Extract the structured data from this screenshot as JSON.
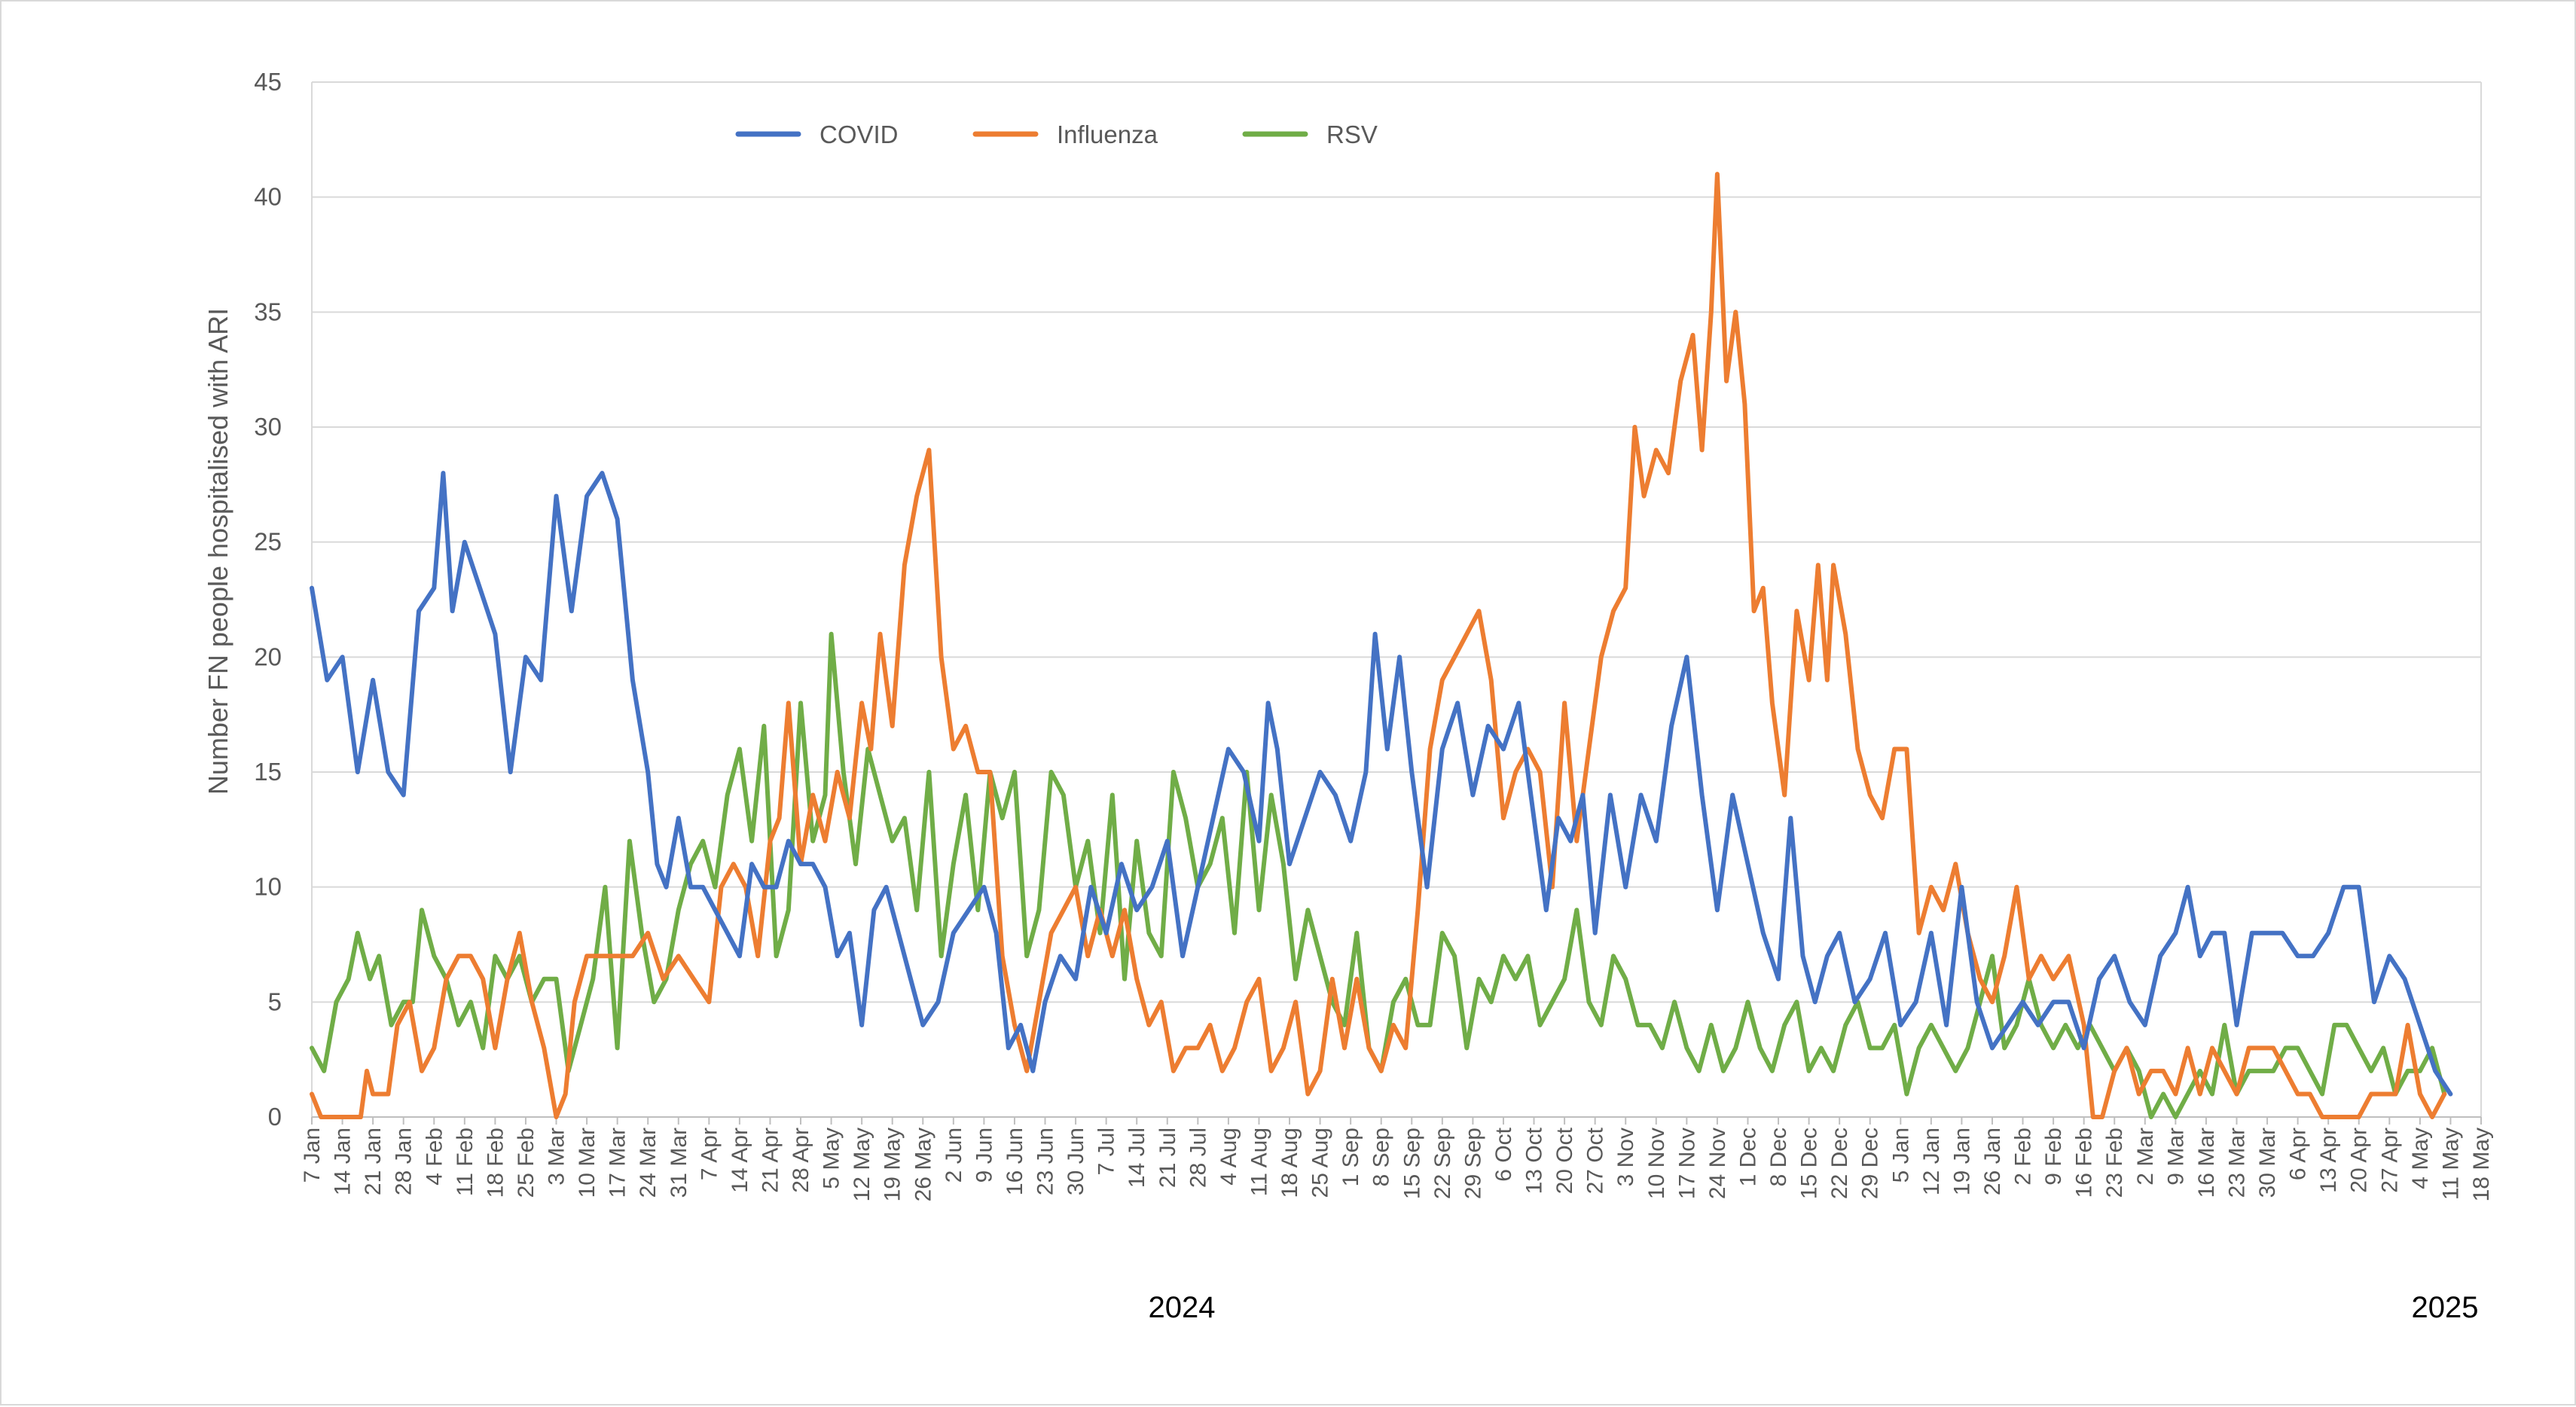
{
  "chart_data": {
    "type": "line",
    "title": "",
    "ylabel": "Number FN people hospitalised with ARI",
    "xlabel": "",
    "ylim": [
      0,
      45
    ],
    "y_ticks": [
      0,
      5,
      10,
      15,
      20,
      25,
      30,
      35,
      40,
      45
    ],
    "grid": "horizontal",
    "legend_position": "top-left",
    "x_tick_labels": [
      "7 Jan",
      "14 Jan",
      "21 Jan",
      "28 Jan",
      "4 Feb",
      "11 Feb",
      "18 Feb",
      "25 Feb",
      "3 Mar",
      "10 Mar",
      "17 Mar",
      "24 Mar",
      "31 Mar",
      "7 Apr",
      "14 Apr",
      "21 Apr",
      "28 Apr",
      "5 May",
      "12 May",
      "19 May",
      "26 May",
      "2 Jun",
      "9 Jun",
      "16 Jun",
      "23 Jun",
      "30 Jun",
      "7 Jul",
      "14 Jul",
      "21 Jul",
      "28 Jul",
      "4 Aug",
      "11 Aug",
      "18 Aug",
      "25 Aug",
      "1 Sep",
      "8 Sep",
      "15 Sep",
      "22 Sep",
      "29 Sep",
      "6 Oct",
      "13 Oct",
      "20 Oct",
      "27 Oct",
      "3 Nov",
      "10 Nov",
      "17 Nov",
      "24 Nov",
      "1 Dec",
      "8 Dec",
      "15 Dec",
      "22 Dec",
      "29 Dec",
      "5 Jan",
      "12 Jan",
      "19 Jan",
      "26 Jan",
      "2 Feb",
      "9 Feb",
      "16 Feb",
      "23 Feb",
      "2 Mar",
      "9 Mar",
      "16 Mar",
      "23 Mar",
      "30 Mar",
      "6 Apr",
      "13 Apr",
      "20 Apr",
      "27 Apr",
      "4 May",
      "11 May",
      "18 May"
    ],
    "year_labels": [
      {
        "label": "2024",
        "at_week": 25
      },
      {
        "label": "2025",
        "at_week": 71
      }
    ],
    "x_unit": "weeks from 7 Jan 2024 (one point every ~2 days)",
    "series": [
      {
        "name": "COVID",
        "color": "#4472c4",
        "points": [
          [
            0,
            23
          ],
          [
            0.5,
            19
          ],
          [
            1,
            20
          ],
          [
            1.5,
            15
          ],
          [
            2,
            19
          ],
          [
            2.5,
            15
          ],
          [
            3,
            14
          ],
          [
            3.5,
            22
          ],
          [
            4,
            23
          ],
          [
            4.3,
            28
          ],
          [
            4.6,
            22
          ],
          [
            5,
            25
          ],
          [
            5.5,
            23
          ],
          [
            6,
            21
          ],
          [
            6.5,
            15
          ],
          [
            7,
            20
          ],
          [
            7.5,
            19
          ],
          [
            8,
            27
          ],
          [
            8.5,
            22
          ],
          [
            9,
            27
          ],
          [
            9.5,
            28
          ],
          [
            10,
            26
          ],
          [
            10.5,
            19
          ],
          [
            11,
            15
          ],
          [
            11.3,
            11
          ],
          [
            11.6,
            10
          ],
          [
            12,
            13
          ],
          [
            12.4,
            10
          ],
          [
            12.8,
            10
          ],
          [
            13.2,
            9
          ],
          [
            13.6,
            8
          ],
          [
            14,
            7
          ],
          [
            14.4,
            11
          ],
          [
            14.8,
            10
          ],
          [
            15.2,
            10
          ],
          [
            15.6,
            12
          ],
          [
            16,
            11
          ],
          [
            16.4,
            11
          ],
          [
            16.8,
            10
          ],
          [
            17.2,
            7
          ],
          [
            17.6,
            8
          ],
          [
            18,
            4
          ],
          [
            18.4,
            9
          ],
          [
            18.8,
            10
          ],
          [
            19.2,
            8
          ],
          [
            19.6,
            6
          ],
          [
            20,
            4
          ],
          [
            20.5,
            5
          ],
          [
            21,
            8
          ],
          [
            21.5,
            9
          ],
          [
            22,
            10
          ],
          [
            22.4,
            8
          ],
          [
            22.8,
            3
          ],
          [
            23.2,
            4
          ],
          [
            23.6,
            2
          ],
          [
            24,
            5
          ],
          [
            24.5,
            7
          ],
          [
            25,
            6
          ],
          [
            25.5,
            10
          ],
          [
            26,
            8
          ],
          [
            26.5,
            11
          ],
          [
            27,
            9
          ],
          [
            27.5,
            10
          ],
          [
            28,
            12
          ],
          [
            28.5,
            7
          ],
          [
            29,
            10
          ],
          [
            29.5,
            13
          ],
          [
            30,
            16
          ],
          [
            30.5,
            15
          ],
          [
            31,
            12
          ],
          [
            31.3,
            18
          ],
          [
            31.6,
            16
          ],
          [
            32,
            11
          ],
          [
            32.5,
            13
          ],
          [
            33,
            15
          ],
          [
            33.5,
            14
          ],
          [
            34,
            12
          ],
          [
            34.5,
            15
          ],
          [
            34.8,
            21
          ],
          [
            35.2,
            16
          ],
          [
            35.6,
            20
          ],
          [
            36,
            15
          ],
          [
            36.5,
            10
          ],
          [
            37,
            16
          ],
          [
            37.5,
            18
          ],
          [
            38,
            14
          ],
          [
            38.5,
            17
          ],
          [
            39,
            16
          ],
          [
            39.5,
            18
          ],
          [
            40,
            13
          ],
          [
            40.4,
            9
          ],
          [
            40.8,
            13
          ],
          [
            41.2,
            12
          ],
          [
            41.6,
            14
          ],
          [
            42,
            8
          ],
          [
            42.5,
            14
          ],
          [
            43,
            10
          ],
          [
            43.5,
            14
          ],
          [
            44,
            12
          ],
          [
            44.5,
            17
          ],
          [
            45,
            20
          ],
          [
            45.5,
            14
          ],
          [
            46,
            9
          ],
          [
            46.5,
            14
          ],
          [
            47,
            11
          ],
          [
            47.5,
            8
          ],
          [
            48,
            6
          ],
          [
            48.4,
            13
          ],
          [
            48.8,
            7
          ],
          [
            49.2,
            5
          ],
          [
            49.6,
            7
          ],
          [
            50,
            8
          ],
          [
            50.5,
            5
          ],
          [
            51,
            6
          ],
          [
            51.5,
            8
          ],
          [
            52,
            4
          ],
          [
            52.5,
            5
          ],
          [
            53,
            8
          ],
          [
            53.5,
            4
          ],
          [
            54,
            10
          ],
          [
            54.5,
            5
          ],
          [
            55,
            3
          ],
          [
            55.5,
            4
          ],
          [
            56,
            5
          ],
          [
            56.5,
            4
          ],
          [
            57,
            5
          ],
          [
            57.5,
            5
          ],
          [
            58,
            3
          ],
          [
            58.5,
            6
          ],
          [
            59,
            7
          ],
          [
            59.5,
            5
          ],
          [
            60,
            4
          ],
          [
            60.5,
            7
          ],
          [
            61,
            8
          ],
          [
            61.4,
            10
          ],
          [
            61.8,
            7
          ],
          [
            62.2,
            8
          ],
          [
            62.6,
            8
          ],
          [
            63,
            4
          ],
          [
            63.5,
            8
          ],
          [
            64,
            8
          ],
          [
            64.5,
            8
          ],
          [
            65,
            7
          ],
          [
            65.5,
            7
          ],
          [
            66,
            8
          ],
          [
            66.5,
            10
          ],
          [
            67,
            10
          ],
          [
            67.5,
            5
          ],
          [
            68,
            7
          ],
          [
            68.5,
            6
          ],
          [
            69,
            4
          ],
          [
            69.5,
            2
          ],
          [
            70,
            1
          ]
        ],
        "note": "weekly points, x measured in weeks from 7 Jan"
      },
      {
        "name": "Influenza",
        "color": "#ed7d31",
        "points": [],
        "note": "drawn in script"
      },
      {
        "name": "RSV",
        "color": "#70ad47",
        "points": [],
        "note": "drawn in script"
      }
    ]
  }
}
